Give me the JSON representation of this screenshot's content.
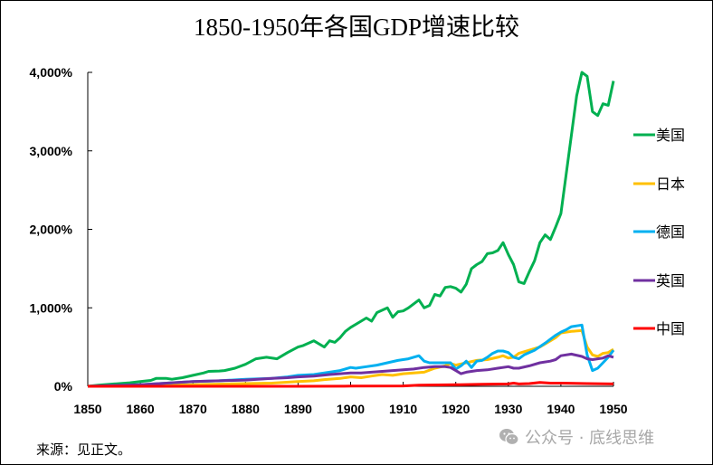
{
  "chart_data": {
    "type": "line",
    "title": "1850-1950年各国GDP增速比较",
    "xlabel": "",
    "ylabel": "",
    "xlim": [
      1850,
      1950
    ],
    "ylim": [
      0,
      4000
    ],
    "x_ticks": [
      "1850",
      "1860",
      "1870",
      "1880",
      "1890",
      "1900",
      "1910",
      "1920",
      "1930",
      "1940",
      "1950"
    ],
    "y_ticks": [
      "0%",
      "1,000%",
      "2,000%",
      "3,000%",
      "4,000%"
    ],
    "grid": false,
    "legend_position": "right",
    "series": [
      {
        "name": "美国",
        "color": "#00b050",
        "points": [
          [
            1850,
            0
          ],
          [
            1852,
            15
          ],
          [
            1855,
            30
          ],
          [
            1858,
            45
          ],
          [
            1860,
            60
          ],
          [
            1862,
            75
          ],
          [
            1863,
            100
          ],
          [
            1865,
            100
          ],
          [
            1866,
            90
          ],
          [
            1868,
            110
          ],
          [
            1870,
            140
          ],
          [
            1872,
            170
          ],
          [
            1873,
            190
          ],
          [
            1875,
            195
          ],
          [
            1876,
            200
          ],
          [
            1878,
            230
          ],
          [
            1880,
            280
          ],
          [
            1882,
            350
          ],
          [
            1884,
            370
          ],
          [
            1886,
            350
          ],
          [
            1888,
            430
          ],
          [
            1890,
            500
          ],
          [
            1891,
            520
          ],
          [
            1893,
            580
          ],
          [
            1895,
            500
          ],
          [
            1896,
            580
          ],
          [
            1897,
            560
          ],
          [
            1898,
            620
          ],
          [
            1899,
            700
          ],
          [
            1900,
            750
          ],
          [
            1902,
            830
          ],
          [
            1903,
            870
          ],
          [
            1904,
            830
          ],
          [
            1905,
            940
          ],
          [
            1907,
            1000
          ],
          [
            1908,
            880
          ],
          [
            1909,
            950
          ],
          [
            1910,
            960
          ],
          [
            1911,
            1000
          ],
          [
            1912,
            1050
          ],
          [
            1913,
            1100
          ],
          [
            1914,
            1000
          ],
          [
            1915,
            1030
          ],
          [
            1916,
            1170
          ],
          [
            1917,
            1150
          ],
          [
            1918,
            1260
          ],
          [
            1919,
            1270
          ],
          [
            1920,
            1250
          ],
          [
            1921,
            1200
          ],
          [
            1922,
            1300
          ],
          [
            1923,
            1500
          ],
          [
            1924,
            1550
          ],
          [
            1925,
            1590
          ],
          [
            1926,
            1690
          ],
          [
            1927,
            1700
          ],
          [
            1928,
            1730
          ],
          [
            1929,
            1830
          ],
          [
            1930,
            1680
          ],
          [
            1931,
            1550
          ],
          [
            1932,
            1330
          ],
          [
            1933,
            1310
          ],
          [
            1934,
            1460
          ],
          [
            1935,
            1600
          ],
          [
            1936,
            1830
          ],
          [
            1937,
            1930
          ],
          [
            1938,
            1870
          ],
          [
            1939,
            2030
          ],
          [
            1940,
            2200
          ],
          [
            1941,
            2700
          ],
          [
            1942,
            3200
          ],
          [
            1943,
            3700
          ],
          [
            1944,
            4000
          ],
          [
            1945,
            3950
          ],
          [
            1946,
            3500
          ],
          [
            1947,
            3450
          ],
          [
            1948,
            3600
          ],
          [
            1949,
            3580
          ],
          [
            1950,
            3890
          ]
        ]
      },
      {
        "name": "日本",
        "color": "#ffc000",
        "points": [
          [
            1850,
            0
          ],
          [
            1860,
            10
          ],
          [
            1870,
            20
          ],
          [
            1880,
            35
          ],
          [
            1885,
            40
          ],
          [
            1890,
            60
          ],
          [
            1893,
            70
          ],
          [
            1895,
            85
          ],
          [
            1898,
            100
          ],
          [
            1900,
            120
          ],
          [
            1902,
            110
          ],
          [
            1904,
            130
          ],
          [
            1906,
            150
          ],
          [
            1908,
            140
          ],
          [
            1910,
            160
          ],
          [
            1912,
            170
          ],
          [
            1914,
            180
          ],
          [
            1916,
            230
          ],
          [
            1918,
            260
          ],
          [
            1919,
            290
          ],
          [
            1920,
            270
          ],
          [
            1922,
            300
          ],
          [
            1924,
            330
          ],
          [
            1926,
            340
          ],
          [
            1928,
            370
          ],
          [
            1929,
            390
          ],
          [
            1930,
            360
          ],
          [
            1931,
            370
          ],
          [
            1932,
            420
          ],
          [
            1934,
            460
          ],
          [
            1936,
            500
          ],
          [
            1938,
            580
          ],
          [
            1939,
            620
          ],
          [
            1940,
            680
          ],
          [
            1942,
            700
          ],
          [
            1944,
            710
          ],
          [
            1945,
            500
          ],
          [
            1946,
            400
          ],
          [
            1947,
            380
          ],
          [
            1948,
            420
          ],
          [
            1949,
            430
          ],
          [
            1950,
            470
          ]
        ]
      },
      {
        "name": "德国",
        "color": "#00b0f0",
        "points": [
          [
            1850,
            0
          ],
          [
            1855,
            10
          ],
          [
            1860,
            20
          ],
          [
            1865,
            40
          ],
          [
            1870,
            60
          ],
          [
            1875,
            70
          ],
          [
            1880,
            90
          ],
          [
            1885,
            100
          ],
          [
            1888,
            120
          ],
          [
            1890,
            140
          ],
          [
            1893,
            150
          ],
          [
            1896,
            180
          ],
          [
            1898,
            200
          ],
          [
            1900,
            240
          ],
          [
            1901,
            230
          ],
          [
            1903,
            250
          ],
          [
            1905,
            270
          ],
          [
            1907,
            300
          ],
          [
            1909,
            330
          ],
          [
            1911,
            350
          ],
          [
            1913,
            390
          ],
          [
            1914,
            320
          ],
          [
            1915,
            300
          ],
          [
            1917,
            300
          ],
          [
            1919,
            300
          ],
          [
            1920,
            220
          ],
          [
            1921,
            260
          ],
          [
            1922,
            320
          ],
          [
            1923,
            240
          ],
          [
            1924,
            320
          ],
          [
            1925,
            330
          ],
          [
            1926,
            370
          ],
          [
            1927,
            420
          ],
          [
            1928,
            450
          ],
          [
            1929,
            450
          ],
          [
            1930,
            430
          ],
          [
            1931,
            370
          ],
          [
            1932,
            350
          ],
          [
            1933,
            400
          ],
          [
            1935,
            460
          ],
          [
            1937,
            550
          ],
          [
            1939,
            650
          ],
          [
            1940,
            690
          ],
          [
            1941,
            720
          ],
          [
            1942,
            760
          ],
          [
            1943,
            770
          ],
          [
            1944,
            780
          ],
          [
            1945,
            400
          ],
          [
            1946,
            200
          ],
          [
            1947,
            230
          ],
          [
            1948,
            300
          ],
          [
            1949,
            370
          ],
          [
            1950,
            460
          ]
        ]
      },
      {
        "name": "英国",
        "color": "#7030a0",
        "points": [
          [
            1850,
            0
          ],
          [
            1855,
            10
          ],
          [
            1860,
            20
          ],
          [
            1865,
            40
          ],
          [
            1870,
            60
          ],
          [
            1875,
            70
          ],
          [
            1880,
            80
          ],
          [
            1885,
            100
          ],
          [
            1888,
            110
          ],
          [
            1890,
            120
          ],
          [
            1893,
            130
          ],
          [
            1896,
            150
          ],
          [
            1898,
            160
          ],
          [
            1900,
            170
          ],
          [
            1902,
            170
          ],
          [
            1904,
            180
          ],
          [
            1906,
            190
          ],
          [
            1908,
            200
          ],
          [
            1910,
            210
          ],
          [
            1912,
            220
          ],
          [
            1914,
            240
          ],
          [
            1916,
            250
          ],
          [
            1918,
            250
          ],
          [
            1919,
            240
          ],
          [
            1920,
            200
          ],
          [
            1921,
            160
          ],
          [
            1922,
            180
          ],
          [
            1924,
            200
          ],
          [
            1926,
            210
          ],
          [
            1928,
            230
          ],
          [
            1930,
            250
          ],
          [
            1931,
            230
          ],
          [
            1932,
            230
          ],
          [
            1934,
            260
          ],
          [
            1936,
            300
          ],
          [
            1938,
            320
          ],
          [
            1939,
            340
          ],
          [
            1940,
            390
          ],
          [
            1942,
            410
          ],
          [
            1944,
            380
          ],
          [
            1945,
            350
          ],
          [
            1946,
            340
          ],
          [
            1948,
            360
          ],
          [
            1949,
            390
          ],
          [
            1950,
            370
          ]
        ]
      },
      {
        "name": "中国",
        "color": "#ff0000",
        "points": [
          [
            1850,
            0
          ],
          [
            1870,
            0
          ],
          [
            1890,
            0
          ],
          [
            1900,
            2
          ],
          [
            1910,
            5
          ],
          [
            1913,
            15
          ],
          [
            1920,
            20
          ],
          [
            1925,
            25
          ],
          [
            1930,
            30
          ],
          [
            1931,
            40
          ],
          [
            1932,
            30
          ],
          [
            1934,
            35
          ],
          [
            1936,
            50
          ],
          [
            1938,
            40
          ],
          [
            1940,
            40
          ],
          [
            1945,
            35
          ],
          [
            1950,
            30
          ]
        ]
      }
    ]
  },
  "footer": {
    "source": "来源：见正文。",
    "watermark": "公众号 · 底线思维"
  }
}
